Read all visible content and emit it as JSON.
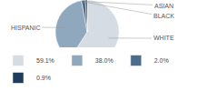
{
  "chart_data": {
    "type": "pie",
    "categories": [
      "WHITE",
      "HISPANIC",
      "BLACK",
      "ASIAN"
    ],
    "values": [
      59.1,
      38.0,
      2.0,
      0.9
    ],
    "value_labels": [
      "59.1%",
      "38.0%",
      "2.0%",
      "0.9%"
    ],
    "colors": [
      "#d6dce4",
      "#8fa8be",
      "#4a6d8c",
      "#1f3c5c"
    ],
    "legend": "bottom"
  }
}
